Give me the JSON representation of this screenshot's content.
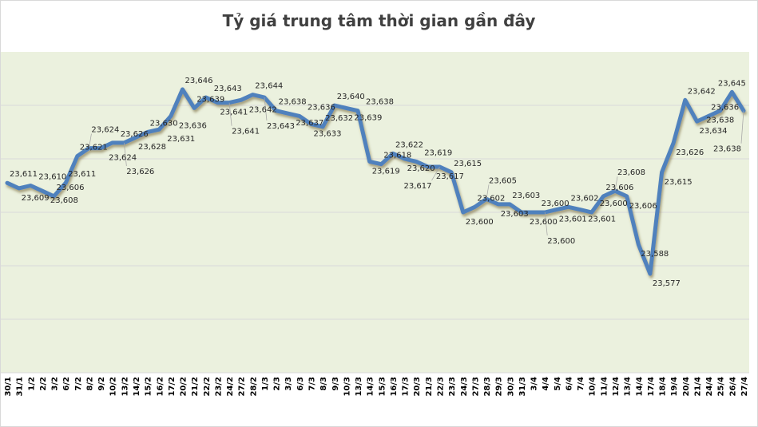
{
  "chart_data": {
    "type": "line",
    "title": "Tỷ giá trung tâm thời gian gần đây",
    "xlabel": "",
    "ylabel": "",
    "ylim": [
      23540,
      23660
    ],
    "y_gridlines": [
      23540,
      23560,
      23580,
      23600,
      23620,
      23640,
      23660
    ],
    "grid": true,
    "y_tick_labels_visible": false,
    "legend": "none",
    "colors": {
      "line": "#4f81bd",
      "plot_bg": "#ebf1de",
      "grid": "#d9d9d9"
    },
    "categories": [
      "30/1",
      "31/1",
      "1/2",
      "2/2",
      "3/2",
      "6/2",
      "7/2",
      "8/2",
      "9/2",
      "10/2",
      "13/2",
      "14/2",
      "15/2",
      "16/2",
      "17/2",
      "20/2",
      "21/2",
      "22/2",
      "23/2",
      "24/2",
      "27/2",
      "28/2",
      "1/3",
      "2/3",
      "3/3",
      "6/3",
      "7/3",
      "8/3",
      "9/3",
      "10/3",
      "13/3",
      "14/3",
      "15/3",
      "16/3",
      "17/3",
      "20/3",
      "21/3",
      "22/3",
      "23/3",
      "24/3",
      "27/3",
      "28/3",
      "29/3",
      "30/3",
      "31/3",
      "3/4",
      "4/4",
      "5/4",
      "6/4",
      "7/4",
      "10/4",
      "11/4",
      "12/4",
      "13/4",
      "14/4",
      "17/4",
      "18/4",
      "19/4",
      "20/4",
      "21/4",
      "24/4",
      "25/4",
      "26/4",
      "27/4"
    ],
    "series": [
      {
        "values": [
          23611,
          23609,
          23610,
          23608,
          23606,
          23611,
          23621,
          23624,
          23624,
          23626,
          23626,
          23628,
          23630,
          23631,
          23636,
          23646,
          23639,
          23643,
          23641,
          23641,
          23642,
          23644,
          23643,
          23638,
          23637,
          23636,
          23633,
          23632,
          23640,
          23639,
          23638,
          23619,
          23618,
          23622,
          23620,
          23619,
          23617,
          23617,
          23615,
          23600,
          23602,
          23605,
          23603,
          23603,
          23600,
          23600,
          23600,
          23601,
          23602,
          23601,
          23600,
          23606,
          23608,
          23606,
          23588,
          23577,
          23615,
          23626,
          23642,
          23634,
          23636,
          23638,
          23645,
          23638
        ],
        "data_labels": [
          "23,611",
          "23,609",
          "23,610",
          "23,608",
          "23,606",
          "23,611",
          "23,621",
          "23,624",
          "23,624",
          "23,626",
          "23,626",
          "23,628",
          "23,630",
          "23,631",
          "23,636",
          "23,646",
          "23,639",
          "23,643",
          "23,641",
          "23,641",
          "23,642",
          "23,644",
          "23,643",
          "23,638",
          "23,637",
          "23,636",
          "23,633",
          "23,632",
          "23,640",
          "23,639",
          "23,638",
          "23,619",
          "23,618",
          "23,622",
          "23,620",
          "23,619",
          "23,617",
          "23,617",
          "23,615",
          "23,600",
          "23,602",
          "23,605",
          "23,603",
          "23,603",
          "23,600",
          "23,600",
          "23,600",
          "23,601",
          "23,602",
          "23,601",
          "23,600",
          "23,606",
          "23,608",
          "23,606",
          "23,588",
          "23,577",
          "23,615",
          "23,626",
          "23,642",
          "23,634",
          "23,636",
          "23,638",
          "23,645",
          "23,638"
        ]
      }
    ]
  }
}
